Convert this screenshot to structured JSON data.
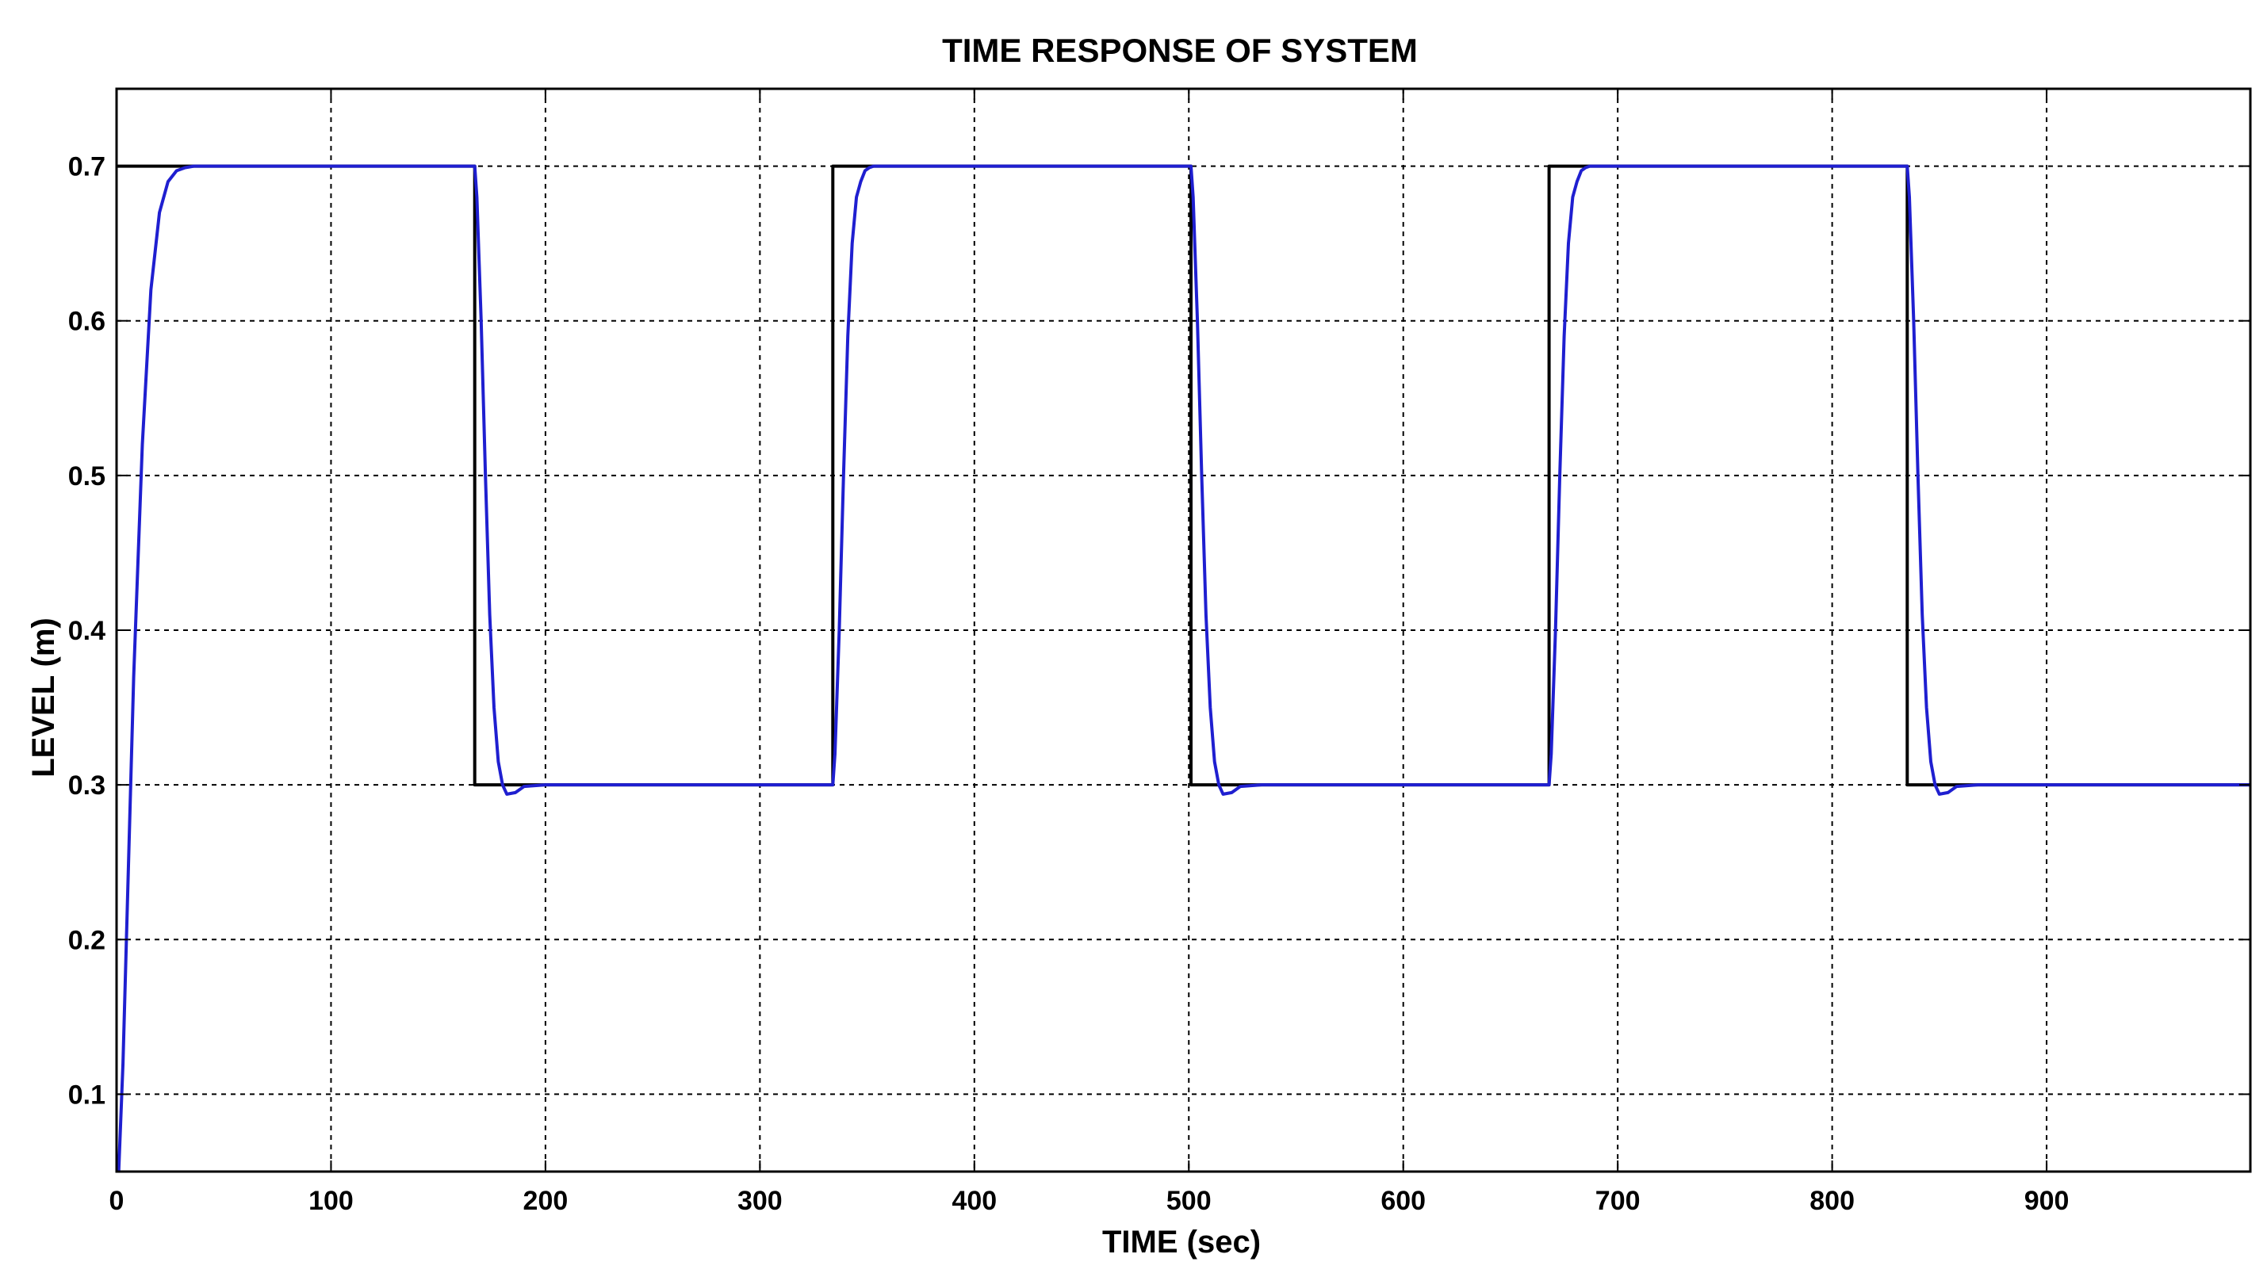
{
  "chart_data": {
    "type": "line",
    "title": "TIME RESPONSE OF SYSTEM",
    "xlabel": "TIME (sec)",
    "ylabel": "LEVEL (m)",
    "xlim": [
      0,
      995
    ],
    "ylim": [
      0.05,
      0.75
    ],
    "grid": true,
    "x_ticks": [
      0,
      100,
      200,
      300,
      400,
      500,
      600,
      700,
      800,
      900
    ],
    "y_ticks": [
      0.1,
      0.2,
      0.3,
      0.4,
      0.5,
      0.6,
      0.7
    ],
    "x_tick_labels": [
      "0",
      "100",
      "200",
      "300",
      "400",
      "500",
      "600",
      "700",
      "800",
      "900"
    ],
    "y_tick_labels": [
      "0.1",
      "0.2",
      "0.3",
      "0.4",
      "0.5",
      "0.6",
      "0.7"
    ],
    "series": [
      {
        "color": "#000000",
        "style": "step",
        "x": [
          0,
          167,
          167,
          334,
          334,
          501,
          501,
          668,
          668,
          835,
          835,
          995
        ],
        "y": [
          0.7,
          0.7,
          0.3,
          0.3,
          0.7,
          0.7,
          0.3,
          0.3,
          0.7,
          0.7,
          0.3,
          0.3
        ]
      },
      {
        "color": "#1f1fd0",
        "style": "line",
        "x": [
          1,
          3,
          5,
          8,
          12,
          16,
          20,
          24,
          28,
          32,
          36,
          40,
          50,
          60,
          167,
          168,
          170,
          172,
          174,
          176,
          178,
          180,
          182,
          186,
          190,
          200,
          334,
          335,
          337,
          339,
          341,
          343,
          345,
          347,
          349,
          351,
          353,
          355,
          359,
          370,
          501,
          502,
          504,
          506,
          508,
          510,
          512,
          514,
          516,
          520,
          524,
          534,
          668,
          669,
          671,
          673,
          675,
          677,
          679,
          681,
          683,
          685,
          687,
          689,
          693,
          704,
          835,
          836,
          838,
          840,
          842,
          844,
          846,
          848,
          850,
          854,
          858,
          868,
          995
        ],
        "y": [
          0.05,
          0.12,
          0.22,
          0.37,
          0.52,
          0.62,
          0.67,
          0.69,
          0.697,
          0.699,
          0.7,
          0.7,
          0.7,
          0.7,
          0.7,
          0.68,
          0.6,
          0.5,
          0.41,
          0.35,
          0.315,
          0.3,
          0.294,
          0.295,
          0.299,
          0.3,
          0.3,
          0.32,
          0.4,
          0.5,
          0.59,
          0.65,
          0.68,
          0.69,
          0.697,
          0.699,
          0.7,
          0.7,
          0.7,
          0.7,
          0.7,
          0.68,
          0.6,
          0.5,
          0.41,
          0.35,
          0.315,
          0.3,
          0.294,
          0.295,
          0.299,
          0.3,
          0.3,
          0.32,
          0.4,
          0.5,
          0.59,
          0.65,
          0.68,
          0.69,
          0.697,
          0.699,
          0.7,
          0.7,
          0.7,
          0.7,
          0.7,
          0.68,
          0.6,
          0.5,
          0.41,
          0.35,
          0.315,
          0.3,
          0.294,
          0.295,
          0.299,
          0.3,
          0.3
        ]
      }
    ]
  }
}
